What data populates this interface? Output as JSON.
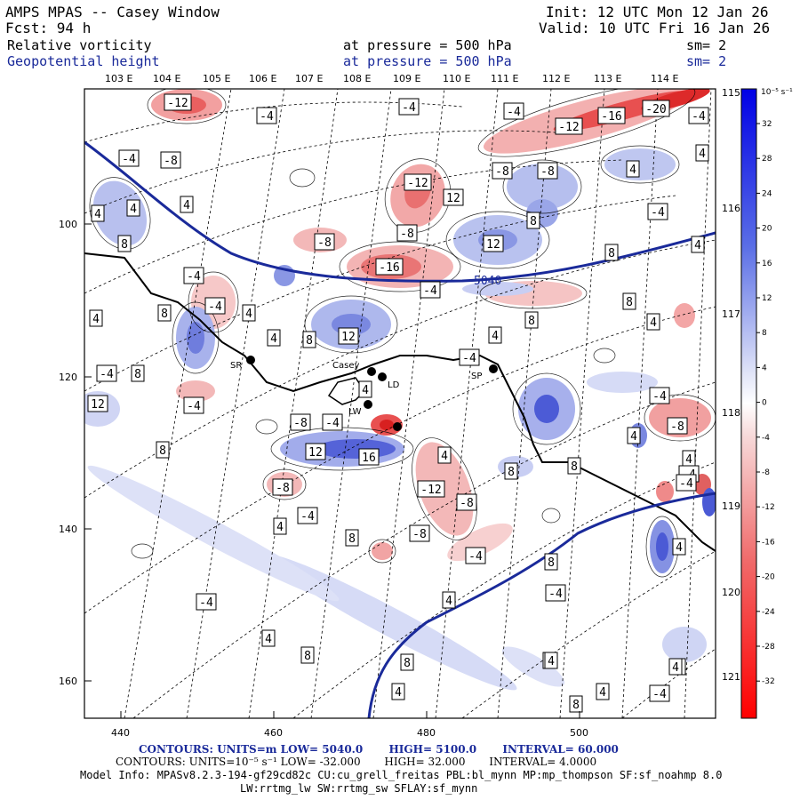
{
  "header": {
    "model_title": "AMPS MPAS -- Casey Window",
    "forecast": "Fcst:   94 h",
    "init": "Init: 12 UTC Mon 12 Jan 26",
    "valid": "Valid: 10 UTC Fri 16 Jan 26"
  },
  "fields": [
    {
      "name": "Relative vorticity",
      "pressure": "at pressure =  500 hPa",
      "smoothing": "sm= 2"
    },
    {
      "name": "Geopotential height",
      "pressure": "at pressure =  500 hPa",
      "smoothing": "sm= 2"
    }
  ],
  "lon_labels_top": [
    "103 E",
    "104 E",
    "105 E",
    "106 E",
    "107 E",
    "108 E",
    "109 E",
    "110 E",
    "111 E",
    "112 E",
    "113 E",
    "114 E"
  ],
  "lon_labels_right": [
    "115 E",
    "116 E",
    "117 E",
    "118 E",
    "119 E",
    "120 E",
    "121 E"
  ],
  "x_ticks": [
    "440",
    "460",
    "480",
    "500"
  ],
  "y_ticks": [
    "100",
    "120",
    "140",
    "160"
  ],
  "colorbar": {
    "unit": "10⁻⁵ s⁻¹",
    "labels": [
      "32",
      "28",
      "24",
      "20",
      "16",
      "12",
      "8",
      "4",
      "0",
      "-4",
      "-8",
      "-12",
      "-16",
      "-20",
      "-24",
      "-28",
      "-32"
    ]
  },
  "height_contour_label": "5040",
  "stations": [
    "SR",
    "Casey",
    "LD",
    "SP",
    "LW"
  ],
  "vort_labels": [
    "-12",
    "-4",
    "-4",
    "-4",
    "-12",
    "-16",
    "-20",
    "-4",
    "-4",
    "-8",
    "-8",
    "-8",
    "4",
    "4",
    "12",
    "4",
    "-12",
    "4",
    "4",
    "8",
    "-4",
    "12",
    "-8",
    "-8",
    "4",
    "-16",
    "8",
    "8",
    "-4",
    "-4",
    "8",
    "-4",
    "4",
    "4",
    "8",
    "8",
    "12",
    "-8",
    "8",
    "4",
    "-4",
    "4",
    "-4",
    "8",
    "4",
    "-4",
    "12",
    "-4",
    "4",
    "8",
    "4",
    "-8",
    "8",
    "12",
    "16",
    "8",
    "-8",
    "-12",
    "-8",
    "-4",
    "4",
    "-4",
    "8",
    "-8",
    "-4",
    "8",
    "4",
    "4",
    "4",
    "-4",
    "8",
    "-4",
    "8",
    "8",
    "8",
    "4",
    "4",
    "4",
    "8",
    "-4",
    "-4",
    "4",
    "4",
    "4",
    "-4",
    "4"
  ],
  "footer": {
    "line1": {
      "label": "CONTOURS:",
      "units": "UNITS=m",
      "low": "LOW=  5040.0",
      "high": "HIGH=  5100.0",
      "interval": "INTERVAL=   60.000"
    },
    "line2": {
      "label": "CONTOURS:",
      "units": "UNITS=10⁻⁵ s⁻¹",
      "low": "LOW= -32.000",
      "high": "HIGH= 32.000",
      "interval": "INTERVAL=   4.0000"
    },
    "model_info": "Model Info: MPASv8.2.3-194-gf29cd82c CU:cu_grell_freitas PBL:bl_mynn MP:mp_thompson SF:sf_noahmp 8.0",
    "model_info2": "LW:rrtmg_lw SW:rrtmg_sw SFLAY:sf_mynn"
  },
  "colors": {
    "positive_max": "#0000e6",
    "negative_max": "#ff0000",
    "height_contour": "#1a2a9a",
    "text_blue": "#1a2a9a"
  }
}
